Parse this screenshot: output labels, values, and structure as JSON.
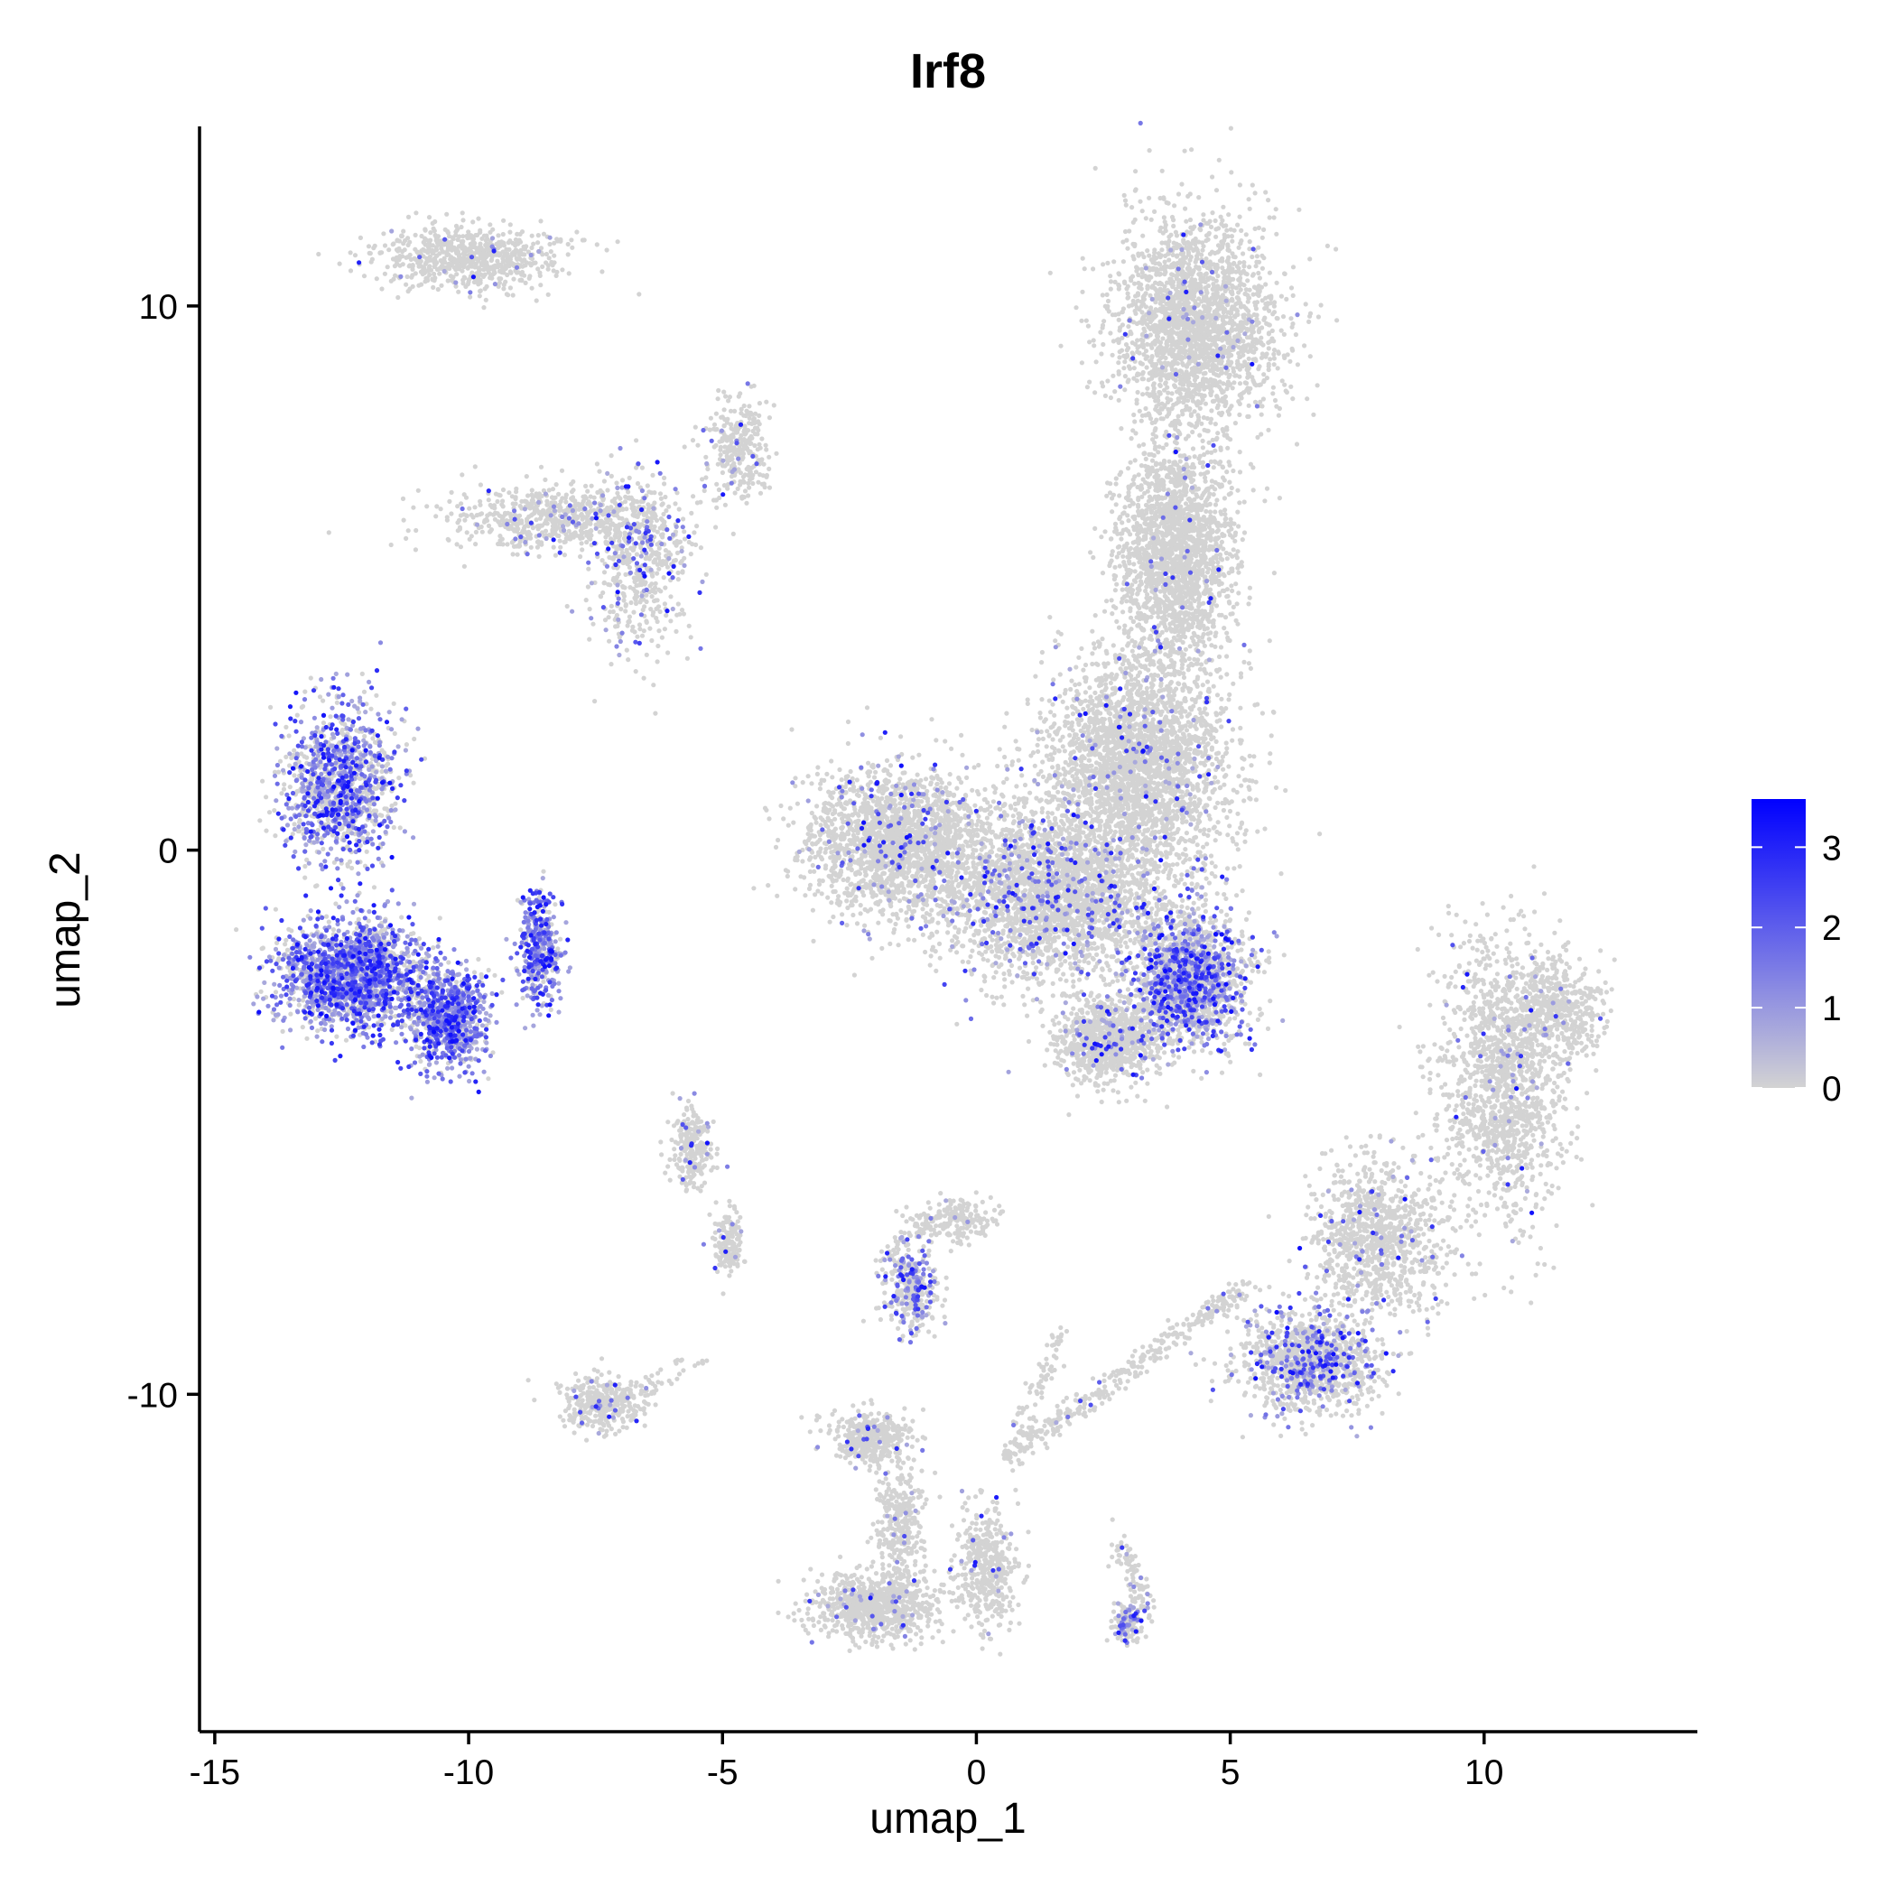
{
  "chart_data": {
    "type": "scatter",
    "title": "Irf8",
    "xlabel": "umap_1",
    "ylabel": "umap_2",
    "xlim": [
      -15.3,
      14.2
    ],
    "ylim": [
      -16.2,
      13.3
    ],
    "x_ticks": [
      -15,
      -10,
      -5,
      0,
      5,
      10
    ],
    "y_ticks": [
      -10,
      0,
      10
    ],
    "x_tick_labels": [
      "-15",
      "-10",
      "-5",
      "0",
      "5",
      "10"
    ],
    "y_tick_labels": [
      "-10",
      "0",
      "10"
    ],
    "grid": false,
    "color_scale": {
      "low_color": "#d3d3d3",
      "high_color": "#0000ff",
      "min": 0,
      "max": 3.6,
      "ticks": [
        0,
        1,
        2,
        3
      ],
      "tick_labels": [
        "0",
        "1",
        "2",
        "3"
      ],
      "legend_position": "right"
    },
    "clusters": [
      {
        "center": [
          -10.0,
          10.9
        ],
        "spread": [
          1.8,
          0.6
        ],
        "n": 700,
        "expr_prob": 0.02
      },
      {
        "center": [
          -8.2,
          6.1
        ],
        "spread": [
          2.2,
          0.6
        ],
        "n": 700,
        "expr_prob": 0.08
      },
      {
        "center": [
          -6.6,
          5.2
        ],
        "spread": [
          0.9,
          1.6
        ],
        "n": 500,
        "expr_prob": 0.2
      },
      {
        "center": [
          -4.7,
          7.4
        ],
        "spread": [
          0.6,
          1.0
        ],
        "n": 300,
        "expr_prob": 0.05
      },
      {
        "center": [
          -12.5,
          1.2
        ],
        "spread": [
          1.1,
          1.4
        ],
        "n": 1200,
        "expr_prob": 0.55
      },
      {
        "center": [
          -12.3,
          -2.3
        ],
        "spread": [
          1.4,
          1.0
        ],
        "n": 1800,
        "expr_prob": 0.65
      },
      {
        "center": [
          -10.4,
          -3.1
        ],
        "spread": [
          0.8,
          0.9
        ],
        "n": 800,
        "expr_prob": 0.75
      },
      {
        "center": [
          -8.6,
          -1.8
        ],
        "spread": [
          0.4,
          1.0
        ],
        "n": 400,
        "expr_prob": 0.8
      },
      {
        "center": [
          4.3,
          9.7
        ],
        "spread": [
          1.6,
          1.9
        ],
        "n": 2200,
        "expr_prob": 0.02
      },
      {
        "center": [
          3.9,
          5.5
        ],
        "spread": [
          1.1,
          2.0
        ],
        "n": 2000,
        "expr_prob": 0.02
      },
      {
        "center": [
          3.2,
          1.6
        ],
        "spread": [
          1.8,
          2.0
        ],
        "n": 2800,
        "expr_prob": 0.04
      },
      {
        "center": [
          -1.5,
          0.2
        ],
        "spread": [
          1.8,
          1.3
        ],
        "n": 2000,
        "expr_prob": 0.06
      },
      {
        "center": [
          1.5,
          -0.8
        ],
        "spread": [
          2.2,
          1.5
        ],
        "n": 2600,
        "expr_prob": 0.12
      },
      {
        "center": [
          4.2,
          -2.4
        ],
        "spread": [
          1.1,
          1.2
        ],
        "n": 1800,
        "expr_prob": 0.38
      },
      {
        "center": [
          2.6,
          -3.5
        ],
        "spread": [
          1.0,
          0.8
        ],
        "n": 900,
        "expr_prob": 0.08
      },
      {
        "center": [
          -5.6,
          -5.5
        ],
        "spread": [
          0.4,
          0.8
        ],
        "n": 250,
        "expr_prob": 0.05
      },
      {
        "center": [
          -4.9,
          -7.2
        ],
        "spread": [
          0.3,
          0.6
        ],
        "n": 150,
        "expr_prob": 0.05
      },
      {
        "center": [
          -1.3,
          -8.1
        ],
        "spread": [
          0.5,
          0.7
        ],
        "n": 350,
        "expr_prob": 0.3
      },
      {
        "center": [
          -0.4,
          -6.8
        ],
        "spread": [
          0.8,
          0.4
        ],
        "n": 200,
        "expr_prob": 0.03
      },
      {
        "center": [
          -7.4,
          -10.2
        ],
        "spread": [
          0.8,
          0.5
        ],
        "n": 300,
        "expr_prob": 0.08
      },
      {
        "center": [
          -2.1,
          -10.8
        ],
        "spread": [
          0.8,
          0.5
        ],
        "n": 400,
        "expr_prob": 0.03
      },
      {
        "center": [
          -1.5,
          -12.4
        ],
        "spread": [
          0.5,
          1.0
        ],
        "n": 300,
        "expr_prob": 0.03
      },
      {
        "center": [
          -2.0,
          -13.9
        ],
        "spread": [
          1.2,
          0.6
        ],
        "n": 800,
        "expr_prob": 0.04
      },
      {
        "center": [
          0.2,
          -13.2
        ],
        "spread": [
          0.6,
          1.1
        ],
        "n": 400,
        "expr_prob": 0.03
      },
      {
        "center": [
          3.0,
          -14.2
        ],
        "spread": [
          0.3,
          0.4
        ],
        "n": 150,
        "expr_prob": 0.3
      },
      {
        "center": [
          6.6,
          -9.4
        ],
        "spread": [
          1.3,
          0.9
        ],
        "n": 1200,
        "expr_prob": 0.22
      },
      {
        "center": [
          10.4,
          -4.2
        ],
        "spread": [
          1.2,
          2.6
        ],
        "n": 1500,
        "expr_prob": 0.03
      },
      {
        "center": [
          11.5,
          -2.9
        ],
        "spread": [
          0.9,
          0.8
        ],
        "n": 400,
        "expr_prob": 0.02
      },
      {
        "center": [
          7.9,
          -7.1
        ],
        "spread": [
          1.3,
          1.4
        ],
        "n": 1000,
        "expr_prob": 0.05
      }
    ],
    "trajectories": [
      {
        "from": [
          0.5,
          -11.2
        ],
        "to": [
          5.3,
          -8.0
        ],
        "n": 350,
        "expr_prob": 0.04
      },
      {
        "from": [
          0.6,
          -11.2
        ],
        "to": [
          1.7,
          -8.8
        ],
        "n": 80,
        "expr_prob": 0.02
      },
      {
        "from": [
          2.8,
          -12.6
        ],
        "to": [
          3.4,
          -14.0
        ],
        "n": 80,
        "expr_prob": 0.05
      },
      {
        "from": [
          -1.9,
          -7.6
        ],
        "to": [
          -0.9,
          -6.8
        ],
        "n": 60,
        "expr_prob": 0.1
      },
      {
        "from": [
          -7.4,
          -10.2
        ],
        "to": [
          -5.4,
          -9.4
        ],
        "n": 60,
        "expr_prob": 0.05
      }
    ]
  }
}
